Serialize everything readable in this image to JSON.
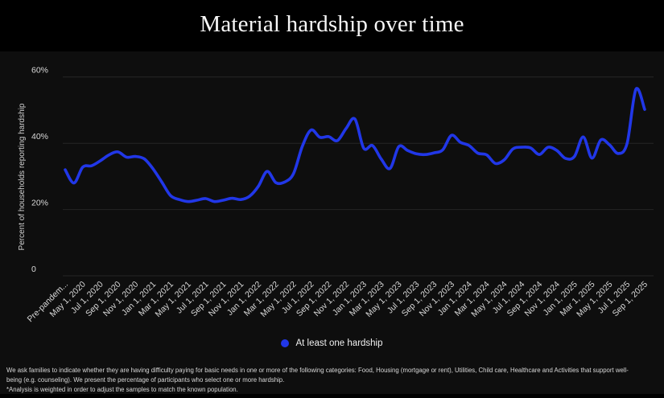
{
  "title": "Material hardship over time",
  "colors": {
    "background": "#000000",
    "panel_background": "#0e0e0e",
    "line_blue": "#2137e8",
    "grid_line": "#262626",
    "axis_text": "#d9d9d9",
    "axis_title_text": "#d0d0d0",
    "title_text": "#f7f7f7"
  },
  "chart_data": {
    "type": "line",
    "title": "Material hardship over time",
    "xlabel": "",
    "ylabel": "Percent of households reporting hardship",
    "ylim": [
      0,
      65
    ],
    "grid": true,
    "legend_position": "bottom-center",
    "y_ticks": [
      {
        "value": 0,
        "label": "0"
      },
      {
        "value": 20,
        "label": "20%"
      },
      {
        "value": 40,
        "label": "40%"
      },
      {
        "value": 60,
        "label": "60%"
      }
    ],
    "x_tick_every": 2,
    "x_tick_labels_shown": [
      "Pre-pandem...",
      "May 1, 2020",
      "Jul 1, 2020",
      "Sep 1, 2020",
      "Nov 1, 2020",
      "Jan 1, 2021",
      "Mar 1, 2021",
      "May 1, 2021",
      "Jul 1, 2021",
      "Sep 1, 2021",
      "Nov 1, 2021",
      "Jan 1, 2022",
      "Mar 1, 2022",
      "May 1, 2022",
      "Jul 1, 2022",
      "Sep 1, 2022",
      "Nov 1, 2022",
      "Jan 1, 2023",
      "Mar 1, 2023",
      "May 1, 2023",
      "Jul 1, 2023",
      "Sep 1, 2023",
      "Nov 1, 2023",
      "Jan 1, 2024",
      "Mar 1, 2024",
      "May 1, 2024",
      "Jul 1, 2024",
      "Sep 1, 2024",
      "Nov 1, 2024",
      "Jan 1, 2025",
      "Mar 1, 2025",
      "May 1, 2025",
      "Jul 1, 2025",
      "Sep 1, 2025"
    ],
    "categories": [
      "Pre-pandemic",
      "Apr 1, 2020",
      "May 1, 2020",
      "Jun 1, 2020",
      "Jul 1, 2020",
      "Aug 1, 2020",
      "Sep 1, 2020",
      "Oct 1, 2020",
      "Nov 1, 2020",
      "Dec 1, 2020",
      "Jan 1, 2021",
      "Feb 1, 2021",
      "Mar 1, 2021",
      "Apr 1, 2021",
      "May 1, 2021",
      "Jun 1, 2021",
      "Jul 1, 2021",
      "Aug 1, 2021",
      "Sep 1, 2021",
      "Oct 1, 2021",
      "Nov 1, 2021",
      "Dec 1, 2021",
      "Jan 1, 2022",
      "Feb 1, 2022",
      "Mar 1, 2022",
      "Apr 1, 2022",
      "May 1, 2022",
      "Jun 1, 2022",
      "Jul 1, 2022",
      "Aug 1, 2022",
      "Sep 1, 2022",
      "Oct 1, 2022",
      "Nov 1, 2022",
      "Dec 1, 2022",
      "Jan 1, 2023",
      "Feb 1, 2023",
      "Mar 1, 2023",
      "Apr 1, 2023",
      "May 1, 2023",
      "Jun 1, 2023",
      "Jul 1, 2023",
      "Aug 1, 2023",
      "Sep 1, 2023",
      "Oct 1, 2023",
      "Nov 1, 2023",
      "Dec 1, 2023",
      "Jan 1, 2024",
      "Feb 1, 2024",
      "Mar 1, 2024",
      "Apr 1, 2024",
      "May 1, 2024",
      "Jun 1, 2024",
      "Jul 1, 2024",
      "Aug 1, 2024",
      "Sep 1, 2024",
      "Oct 1, 2024",
      "Nov 1, 2024",
      "Dec 1, 2024",
      "Jan 1, 2025",
      "Feb 1, 2025",
      "Mar 1, 2025",
      "Apr 1, 2025",
      "May 1, 2025",
      "Jun 1, 2025",
      "Jul 1, 2025",
      "Aug 1, 2025",
      "Sep 1, 2025"
    ],
    "series": [
      {
        "name": "At least one hardship",
        "color": "#2137e8",
        "values": [
          32.0,
          28.0,
          32.8,
          33.2,
          34.7,
          36.5,
          37.4,
          35.8,
          36.0,
          35.3,
          32.3,
          28.3,
          24.2,
          23.0,
          22.4,
          22.8,
          23.3,
          22.4,
          22.8,
          23.4,
          23.0,
          24.0,
          27.0,
          31.5,
          28.1,
          28.3,
          30.8,
          39.0,
          44.0,
          41.8,
          42.0,
          40.8,
          44.5,
          47.3,
          38.5,
          39.3,
          35.2,
          32.4,
          39.0,
          37.8,
          36.8,
          36.6,
          37.1,
          38.0,
          42.4,
          40.3,
          39.3,
          37.0,
          36.5,
          33.9,
          35.0,
          38.3,
          38.8,
          38.6,
          36.6,
          38.8,
          37.8,
          35.4,
          36.0,
          41.9,
          35.5,
          41.0,
          39.5,
          36.9,
          40.0,
          56.3,
          50.2
        ]
      }
    ]
  },
  "footnote": {
    "lines": [
      "We ask families to indicate whether they are having difficulty paying for basic needs in one or more of the following categories: Food, Housing (mortgage or rent), Utilities, Child care, Healthcare and Activities that support well-",
      "being (e.g. counseling). We present the percentage of participants who select one or more hardship.",
      "*Analysis is weighted in order to adjust the samples to match the known population."
    ]
  }
}
